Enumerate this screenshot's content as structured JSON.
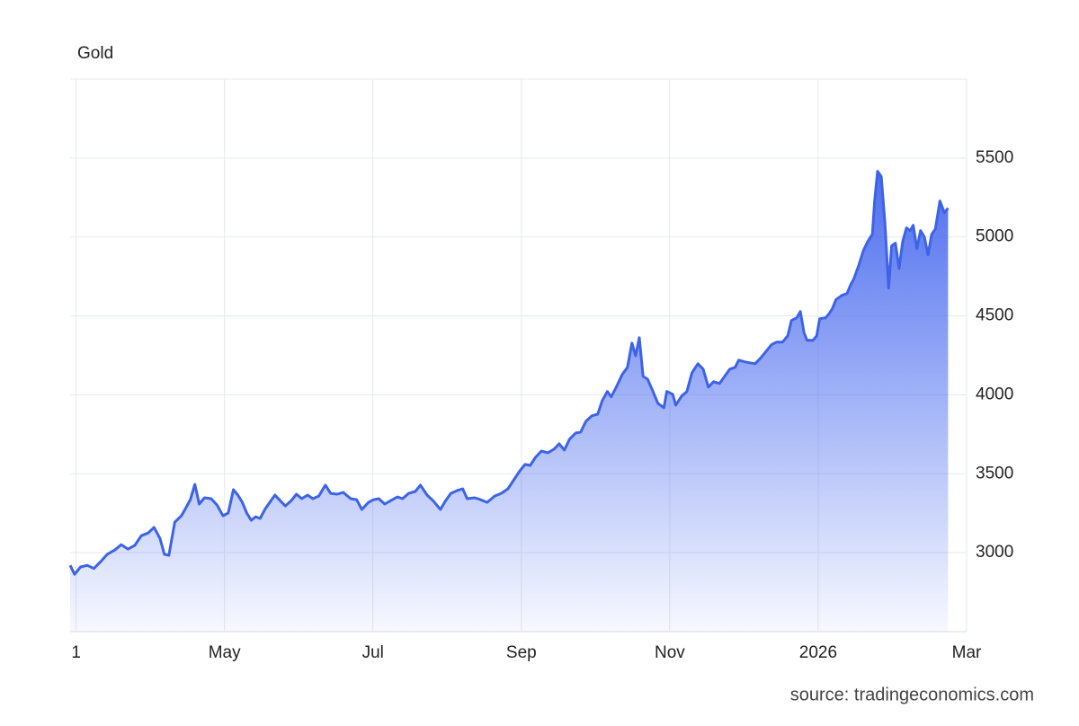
{
  "chart_data": {
    "type": "area",
    "title": "Gold",
    "source": "source: tradingeconomics.com",
    "x": [
      -0.08,
      -0.02,
      0.06,
      0.15,
      0.24,
      0.33,
      0.42,
      0.52,
      0.61,
      0.7,
      0.79,
      0.88,
      0.97,
      1.05,
      1.13,
      1.19,
      1.25,
      1.33,
      1.42,
      1.48,
      1.54,
      1.6,
      1.66,
      1.73,
      1.82,
      1.9,
      1.98,
      2.05,
      2.12,
      2.18,
      2.24,
      2.3,
      2.36,
      2.42,
      2.48,
      2.55,
      2.61,
      2.68,
      2.75,
      2.82,
      2.9,
      2.97,
      3.04,
      3.12,
      3.19,
      3.27,
      3.36,
      3.43,
      3.52,
      3.6,
      3.7,
      3.78,
      3.85,
      3.94,
      4.01,
      4.08,
      4.16,
      4.24,
      4.33,
      4.4,
      4.48,
      4.57,
      4.64,
      4.73,
      4.81,
      4.91,
      4.98,
      5.05,
      5.13,
      5.21,
      5.27,
      5.37,
      5.45,
      5.54,
      5.64,
      5.73,
      5.82,
      5.9,
      5.98,
      6.05,
      6.12,
      6.19,
      6.27,
      6.36,
      6.44,
      6.51,
      6.58,
      6.65,
      6.73,
      6.8,
      6.87,
      6.95,
      7.03,
      7.09,
      7.16,
      7.21,
      7.28,
      7.36,
      7.43,
      7.49,
      7.54,
      7.59,
      7.64,
      7.7,
      7.77,
      7.84,
      7.92,
      7.96,
      8.04,
      8.08,
      8.16,
      8.23,
      8.3,
      8.38,
      8.45,
      8.52,
      8.59,
      8.67,
      8.74,
      8.81,
      8.88,
      8.93,
      9.01,
      9.08,
      9.15,
      9.22,
      9.3,
      9.37,
      9.44,
      9.52,
      9.59,
      9.64,
      9.71,
      9.76,
      9.81,
      9.85,
      9.93,
      9.98,
      10.02,
      10.1,
      10.15,
      10.19,
      10.24,
      10.32,
      10.39,
      10.44,
      10.48,
      10.55,
      10.61,
      10.67,
      10.73,
      10.76,
      10.8,
      10.85,
      10.9,
      10.95,
      10.99,
      11.04,
      11.09,
      11.14,
      11.19,
      11.24,
      11.28,
      11.33,
      11.38,
      11.43,
      11.48,
      11.53,
      11.58,
      11.64,
      11.7,
      11.75
    ],
    "series": [
      {
        "name": "Gold",
        "color": "#3d63e6",
        "values": [
          2920,
          2863,
          2910,
          2920,
          2900,
          2943,
          2990,
          3017,
          3051,
          3023,
          3046,
          3108,
          3125,
          3160,
          3091,
          2990,
          2983,
          3194,
          3234,
          3285,
          3336,
          3433,
          3308,
          3348,
          3342,
          3302,
          3234,
          3251,
          3399,
          3365,
          3319,
          3251,
          3205,
          3228,
          3217,
          3279,
          3319,
          3365,
          3330,
          3296,
          3330,
          3371,
          3342,
          3365,
          3342,
          3359,
          3428,
          3376,
          3371,
          3382,
          3342,
          3336,
          3274,
          3319,
          3336,
          3342,
          3308,
          3330,
          3353,
          3342,
          3376,
          3388,
          3428,
          3365,
          3330,
          3274,
          3330,
          3376,
          3393,
          3405,
          3342,
          3348,
          3336,
          3319,
          3359,
          3376,
          3405,
          3462,
          3519,
          3559,
          3553,
          3604,
          3644,
          3633,
          3656,
          3690,
          3650,
          3719,
          3758,
          3764,
          3832,
          3867,
          3878,
          3964,
          4021,
          3987,
          4049,
          4129,
          4174,
          4328,
          4248,
          4362,
          4117,
          4100,
          4026,
          3946,
          3918,
          4021,
          4003,
          3935,
          3992,
          4021,
          4140,
          4197,
          4163,
          4049,
          4083,
          4072,
          4117,
          4163,
          4174,
          4220,
          4209,
          4203,
          4197,
          4231,
          4277,
          4317,
          4334,
          4334,
          4374,
          4471,
          4488,
          4528,
          4391,
          4345,
          4345,
          4374,
          4482,
          4488,
          4516,
          4545,
          4602,
          4630,
          4642,
          4699,
          4733,
          4824,
          4915,
          4972,
          5017,
          5228,
          5416,
          5382,
          5086,
          4676,
          4944,
          4961,
          4801,
          4972,
          5057,
          5040,
          5074,
          4926,
          5040,
          5000,
          4886,
          5017,
          5051,
          5228,
          5154,
          5182
        ]
      }
    ],
    "xlim": [
      -0.08,
      12
    ],
    "xticks": [
      {
        "value": 0,
        "label": "1"
      },
      {
        "value": 2,
        "label": "May"
      },
      {
        "value": 4,
        "label": "Jul"
      },
      {
        "value": 6,
        "label": "Sep"
      },
      {
        "value": 8,
        "label": "Nov"
      },
      {
        "value": 10,
        "label": "2026"
      },
      {
        "value": 12,
        "label": "Mar"
      }
    ],
    "ylim": [
      2500,
      6000
    ],
    "yticks": [
      3000,
      3500,
      4000,
      4500,
      5000,
      5500
    ],
    "grid": true
  }
}
